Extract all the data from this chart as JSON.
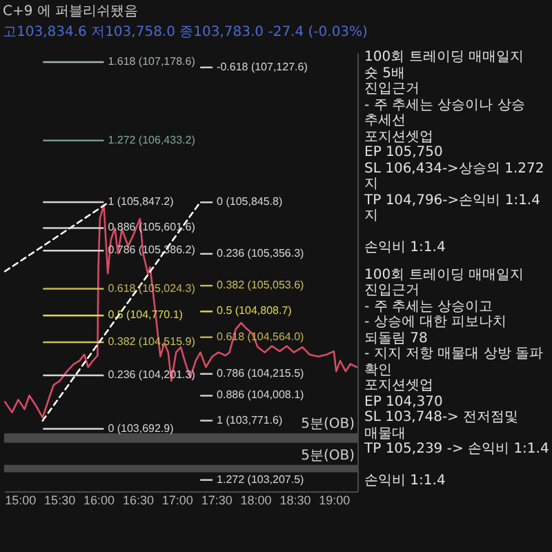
{
  "chart_data": {
    "type": "line",
    "title": "C+9 에 퍼블리쉬됐음",
    "subtitle": "고103,834.6 저103,758.0 종103,783.0 -27.4 (-0.03%)",
    "xlim": [
      14.8,
      19.3
    ],
    "ylim": [
      103100,
      107270
    ],
    "xticks": [
      {
        "value": 15,
        "label": "15:00"
      },
      {
        "value": 15.5,
        "label": "15:30"
      },
      {
        "value": 16,
        "label": "16:00"
      },
      {
        "value": 16.5,
        "label": "16:30"
      },
      {
        "value": 17,
        "label": "17:00"
      },
      {
        "value": 17.5,
        "label": "17:30"
      },
      {
        "value": 18,
        "label": "18:00"
      },
      {
        "value": 18.5,
        "label": "18:30"
      },
      {
        "value": 19,
        "label": "19:00"
      }
    ],
    "tick_labels": "x",
    "grid": false,
    "series": [
      {
        "color": "#d94a63",
        "x": [
          14.81,
          14.9,
          14.98,
          15.06,
          15.12,
          15.2,
          15.29,
          15.37,
          15.43,
          15.51,
          15.6,
          15.69,
          15.76,
          15.82,
          15.87,
          15.93,
          15.99,
          16.0,
          16.02,
          16.07,
          16.1,
          16.12,
          16.16,
          16.21,
          16.25,
          16.3,
          16.38,
          16.46,
          16.53,
          16.57,
          16.63,
          16.66,
          16.72,
          16.79,
          16.84,
          16.89,
          16.93,
          16.99,
          17.05,
          17.1,
          17.17,
          17.24,
          17.3,
          17.37,
          17.45,
          17.53,
          17.62,
          17.67,
          17.75,
          17.82,
          17.88,
          17.96,
          18.03,
          18.12,
          18.21,
          18.31,
          18.4,
          18.49,
          18.6,
          18.69,
          18.8,
          18.91,
          19.0,
          19.03,
          19.08,
          19.15,
          19.21,
          19.29
        ],
        "values": [
          103950,
          103850,
          103970,
          103880,
          104010,
          103920,
          103800,
          103980,
          104110,
          104150,
          104240,
          104310,
          104340,
          104400,
          104280,
          104340,
          104390,
          105230,
          105690,
          105820,
          105430,
          105170,
          105490,
          105600,
          105360,
          105590,
          105430,
          105560,
          105690,
          105360,
          105170,
          105230,
          104840,
          104380,
          104510,
          104420,
          104150,
          104420,
          104470,
          104340,
          104180,
          104340,
          104420,
          104280,
          104380,
          104420,
          104390,
          104420,
          104640,
          104700,
          104650,
          104600,
          104470,
          104420,
          104480,
          104430,
          104480,
          104420,
          104470,
          104400,
          104380,
          104400,
          104430,
          104240,
          104340,
          104240,
          104310,
          104280
        ]
      },
      {
        "color": "#ffffff",
        "line_style": "dashed",
        "x": [
          14.81,
          16.12
        ],
        "values": [
          105190,
          105840
        ]
      },
      {
        "color": "#ffffff",
        "line_style": "dashed",
        "x": [
          15.29,
          17.3
        ],
        "values": [
          103770,
          105850
        ]
      }
    ],
    "ref_lines": [
      {
        "axis": "y",
        "value": 107178.6,
        "label": "1.618 (107,178.6)",
        "color": "#a9b3ad"
      },
      {
        "axis": "y",
        "value": 106433.2,
        "label": "1.272 (106,433.2)",
        "color": "#7fa896"
      },
      {
        "axis": "y",
        "value": 105847.2,
        "label": "1 (105,847.2)",
        "color": "#d6d6d6"
      },
      {
        "axis": "y",
        "value": 105601.6,
        "label": "0.886 (105,601.6)",
        "color": "#d6d6d6"
      },
      {
        "axis": "y",
        "value": 105386.2,
        "label": "0.786 (105,386.2)",
        "color": "#d6d6d6"
      },
      {
        "axis": "y",
        "value": 105024.3,
        "label": "0.618 (105,024.3)",
        "color": "#c8b550"
      },
      {
        "axis": "y",
        "value": 104770.1,
        "label": "0.5 (104,770.1)",
        "color": "#e3d94f"
      },
      {
        "axis": "y",
        "value": 104515.9,
        "label": "0.382 (104,515.9)",
        "color": "#c9c25a"
      },
      {
        "axis": "y",
        "value": 104201.3,
        "label": "0.236 (104,201.3)",
        "color": "#d6d6d6"
      },
      {
        "axis": "y",
        "value": 103692.9,
        "label": "0 (103,692.9)",
        "color": "#d6d6d6"
      },
      {
        "axis": "y",
        "value": 107127.6,
        "label": "-0.618 (107,127.6)",
        "color": "#d6d6d6"
      },
      {
        "axis": "y",
        "value": 105845.8,
        "label": "0 (105,845.8)",
        "color": "#d6d6d6"
      },
      {
        "axis": "y",
        "value": 105356.3,
        "label": "0.236 (105,356.3)",
        "color": "#d6d6d6"
      },
      {
        "axis": "y",
        "value": 105053.6,
        "label": "0.382 (105,053.6)",
        "color": "#c9c25a"
      },
      {
        "axis": "y",
        "value": 104808.7,
        "label": "0.5 (104,808.7)",
        "color": "#e3d94f"
      },
      {
        "axis": "y",
        "value": 104564.0,
        "label": "0.618 (104,564.0)",
        "color": "#c8b550"
      },
      {
        "axis": "y",
        "value": 104215.5,
        "label": "0.786 (104,215.5)",
        "color": "#d6d6d6"
      },
      {
        "axis": "y",
        "value": 104008.1,
        "label": "0.886 (104,008.1)",
        "color": "#d6d6d6"
      },
      {
        "axis": "y",
        "value": 103771.6,
        "label": "1 (103,771.6)",
        "color": "#d6d6d6"
      },
      {
        "axis": "y",
        "value": 103207.5,
        "label": "1.272 (103,207.5)",
        "color": "#d6d6d6"
      }
    ],
    "bands": [
      {
        "axis": "y",
        "from": 103560,
        "to": 103650,
        "label": "5분(OB)",
        "color": "#6e6e6e"
      },
      {
        "axis": "y",
        "from": 103280,
        "to": 103350,
        "label": "5분(OB)",
        "color": "#6e6e6e"
      }
    ],
    "annotations": [
      "100회 트레이딩 매매일지\n숏 5배\n진입근거\n- 주 추세는 상승이나 상승 추세선\n포지션셋업\nEP 105,750\nSL 106,434->상승의 1.272 지\nTP 104,796->손익비 1:1.4 지\n\n손익비 1:1.4",
      "100회 트레이딩 매매일지\n진입근거\n- 주 추세는 상승이고\n- 상승에 대한 피보나치 되돌림 78\n- 지지 저항 매물대 상방 돌파 확인\n포지션셋업\nEP 104,370\nSL 103,748-> 전저점및 매물대\nTP 105,239 -> 손익비 1:1.4\n\n손익비 1:1.4"
    ]
  }
}
